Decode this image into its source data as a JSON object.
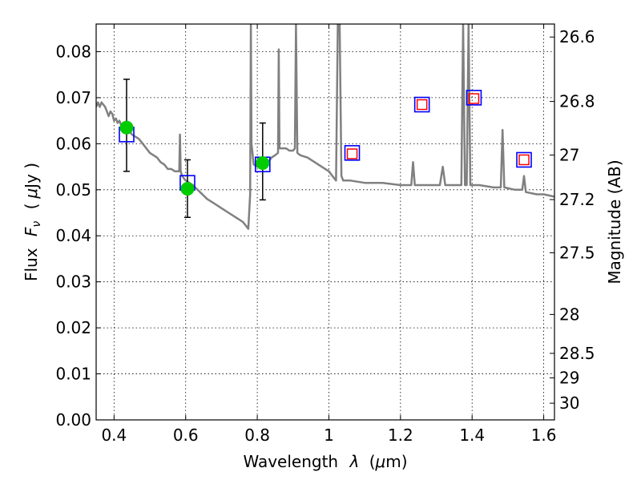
{
  "chart_data": {
    "type": "scatter",
    "xlabel_text": "Wavelength",
    "xlabel_symbol": "λ",
    "xlabel_unit_open": "(",
    "xlabel_unit_mu": "μ",
    "xlabel_unit_rest": "m)",
    "ylabel_text": "Flux",
    "ylabel_symbol": "F",
    "ylabel_sub": "ν",
    "ylabel_unit_open": "(",
    "ylabel_unit_mu": "μ",
    "ylabel_unit_rest": "Jy )",
    "y2label": "Magnitude (AB)",
    "xlim": [
      0.35,
      1.63
    ],
    "ylim": [
      0.0,
      0.086
    ],
    "grid": true,
    "x_ticks": [
      {
        "value": 0.4,
        "label": "0.4"
      },
      {
        "value": 0.6,
        "label": "0.6"
      },
      {
        "value": 0.8,
        "label": "0.8"
      },
      {
        "value": 1.0,
        "label": "1"
      },
      {
        "value": 1.2,
        "label": "1.2"
      },
      {
        "value": 1.4,
        "label": "1.4"
      },
      {
        "value": 1.6,
        "label": "1.6"
      }
    ],
    "y_ticks": [
      {
        "value": 0.0,
        "label": "0.00"
      },
      {
        "value": 0.01,
        "label": "0.01"
      },
      {
        "value": 0.02,
        "label": "0.02"
      },
      {
        "value": 0.03,
        "label": "0.03"
      },
      {
        "value": 0.04,
        "label": "0.04"
      },
      {
        "value": 0.05,
        "label": "0.05"
      },
      {
        "value": 0.06,
        "label": "0.06"
      },
      {
        "value": 0.07,
        "label": "0.07"
      },
      {
        "value": 0.08,
        "label": "0.08"
      }
    ],
    "y2_ticks": [
      {
        "mag": 26.6,
        "label": "26.6"
      },
      {
        "mag": 26.8,
        "label": "26.8"
      },
      {
        "mag": 27.0,
        "label": "27"
      },
      {
        "mag": 27.2,
        "label": "27.2"
      },
      {
        "mag": 27.5,
        "label": "27.5"
      },
      {
        "mag": 28.0,
        "label": "28"
      },
      {
        "mag": 28.5,
        "label": "28.5"
      },
      {
        "mag": 29.0,
        "label": "29"
      },
      {
        "mag": 30.0,
        "label": "30"
      }
    ],
    "series": [
      {
        "kind": "model-spectrum",
        "color": "#808080",
        "points": [
          [
            0.35,
            0.068
          ],
          [
            0.355,
            0.069
          ],
          [
            0.36,
            0.068
          ],
          [
            0.365,
            0.069
          ],
          [
            0.37,
            0.0685
          ],
          [
            0.375,
            0.068
          ],
          [
            0.38,
            0.067
          ],
          [
            0.385,
            0.066
          ],
          [
            0.39,
            0.067
          ],
          [
            0.395,
            0.0665
          ],
          [
            0.4,
            0.065
          ],
          [
            0.405,
            0.0655
          ],
          [
            0.41,
            0.0645
          ],
          [
            0.415,
            0.065
          ],
          [
            0.42,
            0.064
          ],
          [
            0.425,
            0.064
          ],
          [
            0.43,
            0.063
          ],
          [
            0.435,
            0.0635
          ],
          [
            0.44,
            0.063
          ],
          [
            0.445,
            0.0625
          ],
          [
            0.45,
            0.062
          ],
          [
            0.46,
            0.0615
          ],
          [
            0.47,
            0.061
          ],
          [
            0.48,
            0.06
          ],
          [
            0.49,
            0.059
          ],
          [
            0.5,
            0.058
          ],
          [
            0.51,
            0.0575
          ],
          [
            0.52,
            0.057
          ],
          [
            0.53,
            0.056
          ],
          [
            0.54,
            0.0555
          ],
          [
            0.55,
            0.0545
          ],
          [
            0.56,
            0.0545
          ],
          [
            0.57,
            0.054
          ],
          [
            0.58,
            0.054
          ],
          [
            0.582,
            0.054
          ],
          [
            0.584,
            0.062
          ],
          [
            0.586,
            0.054
          ],
          [
            0.59,
            0.053
          ],
          [
            0.6,
            0.052
          ],
          [
            0.62,
            0.051
          ],
          [
            0.64,
            0.0495
          ],
          [
            0.66,
            0.048
          ],
          [
            0.68,
            0.047
          ],
          [
            0.7,
            0.046
          ],
          [
            0.72,
            0.045
          ],
          [
            0.74,
            0.044
          ],
          [
            0.76,
            0.043
          ],
          [
            0.77,
            0.042
          ],
          [
            0.775,
            0.0415
          ],
          [
            0.78,
            0.049
          ],
          [
            0.782,
            0.086
          ],
          [
            0.784,
            0.06
          ],
          [
            0.79,
            0.0555
          ],
          [
            0.8,
            0.055
          ],
          [
            0.81,
            0.0555
          ],
          [
            0.82,
            0.055
          ],
          [
            0.83,
            0.056
          ],
          [
            0.84,
            0.057
          ],
          [
            0.85,
            0.0575
          ],
          [
            0.858,
            0.058
          ],
          [
            0.86,
            0.0805
          ],
          [
            0.862,
            0.059
          ],
          [
            0.87,
            0.059
          ],
          [
            0.88,
            0.059
          ],
          [
            0.89,
            0.0585
          ],
          [
            0.9,
            0.0585
          ],
          [
            0.905,
            0.059
          ],
          [
            0.908,
            0.086
          ],
          [
            0.912,
            0.058
          ],
          [
            0.92,
            0.0575
          ],
          [
            0.94,
            0.057
          ],
          [
            0.96,
            0.056
          ],
          [
            0.98,
            0.055
          ],
          [
            1.0,
            0.054
          ],
          [
            1.01,
            0.053
          ],
          [
            1.02,
            0.052
          ],
          [
            1.025,
            0.086
          ],
          [
            1.03,
            0.086
          ],
          [
            1.035,
            0.053
          ],
          [
            1.04,
            0.052
          ],
          [
            1.06,
            0.052
          ],
          [
            1.1,
            0.0515
          ],
          [
            1.15,
            0.0515
          ],
          [
            1.2,
            0.051
          ],
          [
            1.23,
            0.051
          ],
          [
            1.235,
            0.056
          ],
          [
            1.24,
            0.051
          ],
          [
            1.26,
            0.051
          ],
          [
            1.3,
            0.051
          ],
          [
            1.31,
            0.051
          ],
          [
            1.318,
            0.055
          ],
          [
            1.325,
            0.051
          ],
          [
            1.35,
            0.051
          ],
          [
            1.37,
            0.051
          ],
          [
            1.375,
            0.086
          ],
          [
            1.38,
            0.051
          ],
          [
            1.385,
            0.051
          ],
          [
            1.39,
            0.086
          ],
          [
            1.395,
            0.051
          ],
          [
            1.42,
            0.051
          ],
          [
            1.46,
            0.0505
          ],
          [
            1.48,
            0.0505
          ],
          [
            1.485,
            0.063
          ],
          [
            1.49,
            0.0505
          ],
          [
            1.52,
            0.05
          ],
          [
            1.54,
            0.05
          ],
          [
            1.545,
            0.053
          ],
          [
            1.55,
            0.0495
          ],
          [
            1.58,
            0.049
          ],
          [
            1.6,
            0.049
          ],
          [
            1.63,
            0.0485
          ]
        ]
      },
      {
        "kind": "observed-photometry",
        "marker": "filled-circle",
        "color": "#00cc00",
        "points": [
          {
            "x": 0.435,
            "y": 0.0635,
            "ylow": 0.054,
            "yhigh": 0.074
          },
          {
            "x": 0.605,
            "y": 0.0502,
            "ylow": 0.044,
            "yhigh": 0.0565
          },
          {
            "x": 0.815,
            "y": 0.0558,
            "ylow": 0.0478,
            "yhigh": 0.0645
          }
        ]
      },
      {
        "kind": "model-photometry",
        "marker": "open-square",
        "color": "#0000ff",
        "points": [
          [
            0.435,
            0.062
          ],
          [
            0.605,
            0.0515
          ],
          [
            0.815,
            0.0555
          ],
          [
            1.065,
            0.058
          ],
          [
            1.26,
            0.0685
          ],
          [
            1.405,
            0.07
          ],
          [
            1.545,
            0.0565
          ]
        ]
      },
      {
        "kind": "predicted-photometry",
        "marker": "small-open-square",
        "color": "#ff0000",
        "points": [
          [
            1.065,
            0.0578
          ],
          [
            1.26,
            0.0685
          ],
          [
            1.405,
            0.0698
          ],
          [
            1.545,
            0.0565
          ]
        ]
      }
    ]
  }
}
